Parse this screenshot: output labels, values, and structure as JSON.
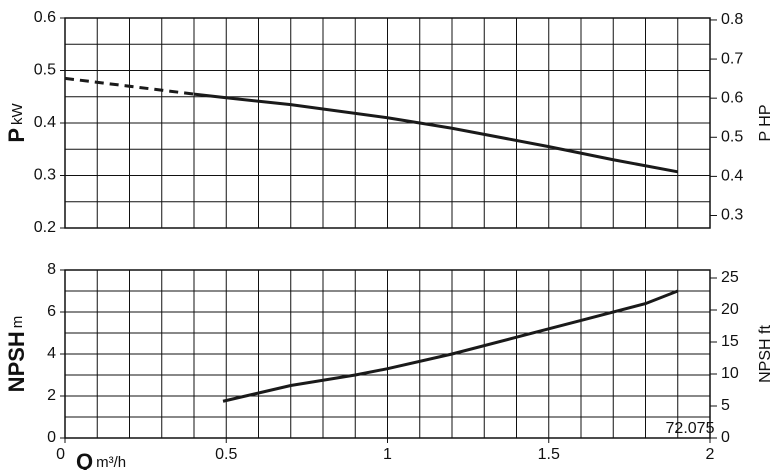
{
  "chart_data": [
    {
      "type": "line",
      "ylabel": "P",
      "ylabel_unit": "kW",
      "y2label": "P HP",
      "xlim": [
        0,
        2
      ],
      "ylim": [
        0.2,
        0.6
      ],
      "yticks": [
        0.2,
        0.3,
        0.4,
        0.5,
        0.6
      ],
      "y2lim": [
        0.268,
        0.805
      ],
      "y2ticks": [
        0.3,
        0.4,
        0.5,
        0.6,
        0.7,
        0.8
      ],
      "grid_x": [
        0,
        0.1,
        0.2,
        0.3,
        0.4,
        0.5,
        0.6,
        0.7,
        0.8,
        0.9,
        1,
        1.1,
        1.2,
        1.3,
        1.4,
        1.5,
        1.6,
        1.7,
        1.8,
        1.9,
        2
      ],
      "grid_y": [
        0.2,
        0.25,
        0.3,
        0.35,
        0.4,
        0.45,
        0.5,
        0.55,
        0.6
      ],
      "series": [
        {
          "color": "#1a1a1a",
          "dash": true,
          "x": [
            0,
            0.4
          ],
          "values": [
            0.485,
            0.455
          ]
        },
        {
          "color": "#1a1a1a",
          "dash": false,
          "x": [
            0.4,
            0.5,
            0.7,
            1.0,
            1.2,
            1.5,
            1.7,
            1.9
          ],
          "values": [
            0.455,
            0.448,
            0.435,
            0.41,
            0.39,
            0.355,
            0.33,
            0.307
          ]
        }
      ]
    },
    {
      "type": "line",
      "ylabel": "NPSH",
      "ylabel_unit": "m",
      "y2label": "NPSH ft",
      "xlabel": "Q",
      "xlabel_unit": "m³/h",
      "note": "72.075",
      "xlim": [
        0,
        2
      ],
      "xticks": [
        0,
        0.5,
        1,
        1.5,
        2
      ],
      "ylim": [
        0,
        8
      ],
      "yticks": [
        0,
        2,
        4,
        6,
        8
      ],
      "y2lim": [
        0,
        26.25
      ],
      "y2ticks": [
        0,
        5,
        10,
        15,
        20,
        25
      ],
      "grid_x": [
        0,
        0.1,
        0.2,
        0.3,
        0.4,
        0.5,
        0.6,
        0.7,
        0.8,
        0.9,
        1,
        1.1,
        1.2,
        1.3,
        1.4,
        1.5,
        1.6,
        1.7,
        1.8,
        1.9,
        2
      ],
      "grid_y": [
        0,
        1,
        2,
        3,
        4,
        5,
        6,
        7,
        8
      ],
      "series": [
        {
          "color": "#1a1a1a",
          "dash": false,
          "x": [
            0.49,
            0.7,
            0.9,
            1.0,
            1.2,
            1.4,
            1.6,
            1.8,
            1.9
          ],
          "values": [
            1.75,
            2.5,
            3.0,
            3.3,
            4.0,
            4.8,
            5.6,
            6.4,
            7.0
          ]
        }
      ]
    }
  ]
}
